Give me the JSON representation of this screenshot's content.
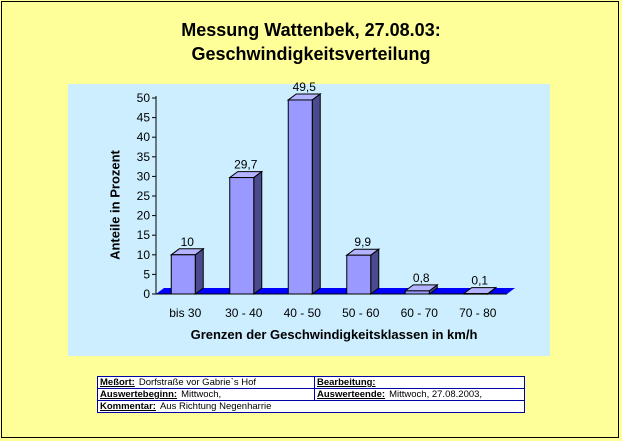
{
  "header": {
    "title_line1": "Messung Wattenbek, 27.08.03:",
    "title_line2": "Geschwindigkeitsverteilung"
  },
  "chart_data": {
    "type": "bar",
    "title": "Messung Wattenbek, 27.08.03: Geschwindigkeitsverteilung",
    "xlabel": "Grenzen der Geschwindigkeitsklassen in km/h",
    "ylabel": "Anteile in Prozent",
    "categories": [
      "bis 30",
      "30 - 40",
      "40 - 50",
      "50 - 60",
      "60 - 70",
      "70 - 80"
    ],
    "values": [
      10,
      29.7,
      49.5,
      9.9,
      0.8,
      0.1
    ],
    "data_labels": [
      "10",
      "29,7",
      "49,5",
      "9,9",
      "0,8",
      "0,1"
    ],
    "yticks": [
      "0",
      "5",
      "10",
      "15",
      "20",
      "25",
      "30",
      "35",
      "40",
      "45",
      "50"
    ],
    "ylim": [
      0,
      50
    ],
    "grid": false,
    "legend": "none",
    "colors": {
      "bar_front": "#9999ff",
      "bar_side": "#4a4a8c",
      "bar_top": "#b3b3ff",
      "floor": "#0000ff",
      "plot_bg": "#cceeff"
    }
  },
  "info": {
    "messort_label": "Meßort:",
    "messort_value": "Dorfstraße vor Gabrie`s Hof",
    "bearbeitung_label": "Bearbeitung:",
    "bearbeitung_value": "",
    "auswertebeginn_label": "Auswertebeginn:",
    "auswertebeginn_value": "Mittwoch,",
    "auswerteende_label": "Auswerteende:",
    "auswerteende_value": "Mittwoch, 27.08.2003,",
    "kommentar_label": "Kommentar:",
    "kommentar_value": "Aus Richtung Negenharrie"
  }
}
